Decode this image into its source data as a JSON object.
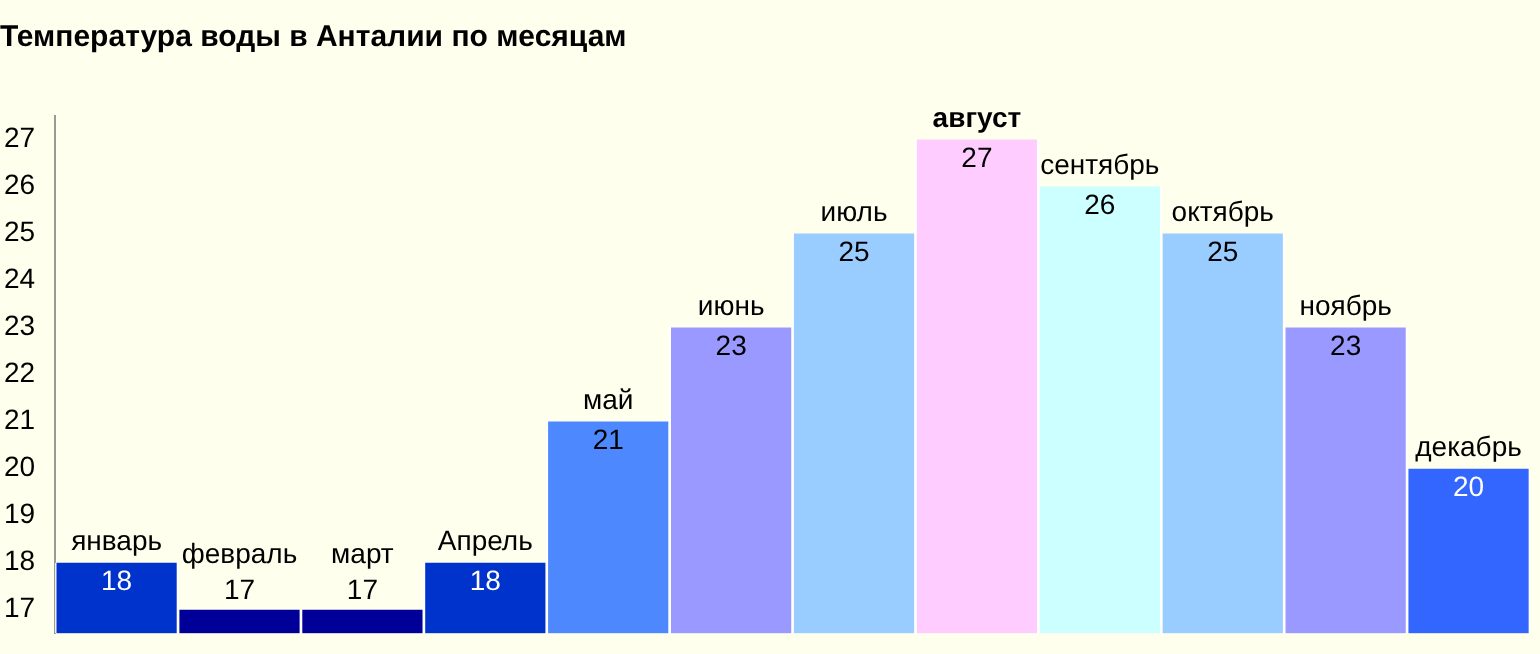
{
  "chart_data": {
    "type": "bar",
    "title": "Температура воды в Анталии по месяцам",
    "categories": [
      "январь",
      "февраль",
      "март",
      "Апрель",
      "май",
      "июнь",
      "июль",
      "август",
      "сентябрь",
      "октябрь",
      "ноябрь",
      "декабрь"
    ],
    "values": [
      18,
      17,
      17,
      18,
      21,
      23,
      25,
      27,
      26,
      25,
      23,
      20
    ],
    "colors": [
      "#0033cc",
      "#000099",
      "#000099",
      "#0033cc",
      "#4d88ff",
      "#9999ff",
      "#99ccff",
      "#ffccff",
      "#ccffff",
      "#99ccff",
      "#9999ff",
      "#3366ff"
    ],
    "ylim": [
      16.5,
      27.5
    ],
    "yticks": [
      17,
      18,
      19,
      20,
      21,
      22,
      23,
      24,
      25,
      26,
      27
    ],
    "data_labels": true,
    "grid": false,
    "legend": false
  }
}
